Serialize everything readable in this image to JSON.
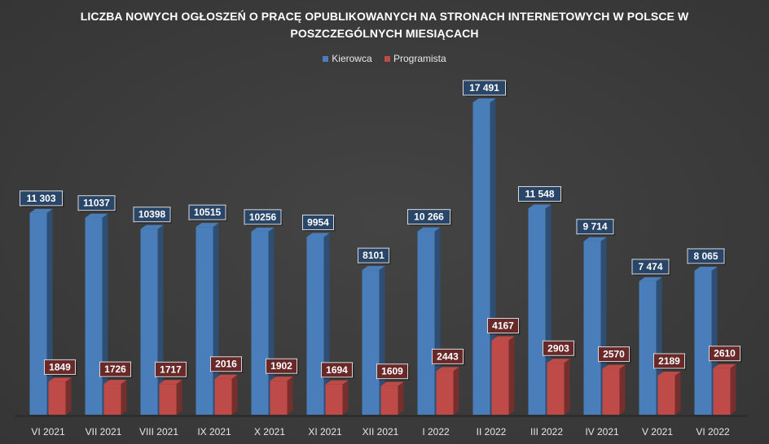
{
  "chart_data": {
    "type": "bar",
    "title_lines": [
      "LICZBA NOWYCH OGŁOSZEŃ O PRACĘ OPUBLIKOWANYCH NA STRONACH INTERNETOWYCH W POLSCE W",
      "POSZCZEGÓLNYCH MIESIĄCACH"
    ],
    "categories": [
      "VI 2021",
      "VII 2021",
      "VIII 2021",
      "IX 2021",
      "X 2021",
      "XI 2021",
      "XII 2021",
      "I 2022",
      "II 2022",
      "III 2022",
      "IV 2021",
      "V 2021",
      "VI 2022"
    ],
    "series": [
      {
        "name": "Kierowca",
        "color": "#4a7ebb",
        "values": [
          11303,
          11037,
          10398,
          10515,
          10256,
          9954,
          8101,
          10266,
          17491,
          11548,
          9714,
          7474,
          8065
        ],
        "labels": [
          "11 303",
          "11037",
          "10398",
          "10515",
          "10256",
          "9954",
          "8101",
          "10 266",
          "17 491",
          "11 548",
          "9 714",
          "7 474",
          "8 065"
        ]
      },
      {
        "name": "Programista",
        "color": "#be4b48",
        "values": [
          1849,
          1726,
          1717,
          2016,
          1902,
          1694,
          1609,
          2443,
          4167,
          2903,
          2570,
          2189,
          2610
        ],
        "labels": [
          "1849",
          "1726",
          "1717",
          "2016",
          "1902",
          "1694",
          "1609",
          "2443",
          "4167",
          "2903",
          "2570",
          "2189",
          "2610"
        ]
      }
    ],
    "ylim": [
      0,
      20000
    ],
    "grid": false,
    "legend_position": "top"
  }
}
